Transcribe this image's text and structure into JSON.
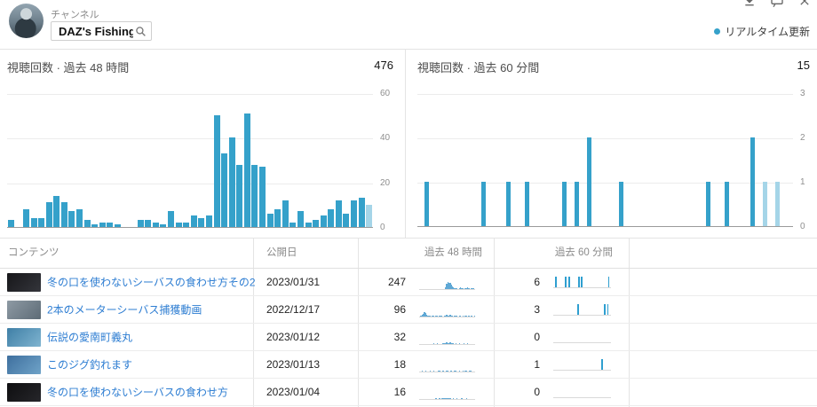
{
  "header": {
    "channel_label": "チャンネル",
    "channel_search": {
      "value": "DAZ's Fishing"
    },
    "realtime_legend": "リアルタイム更新"
  },
  "colors": {
    "bar": "#35a1ca",
    "bar_partial": "#a5d5e8",
    "spark48": "#5fa8d5",
    "spark60": "#2f9fd0",
    "link": "#2d7dd2",
    "realtime_dot": "#35a1ca"
  },
  "chart_data": [
    {
      "type": "bar",
      "title": "視聴回数 · 過去 48 時間",
      "total": "476",
      "x_unit": "hour",
      "x_range": "past 48 hours",
      "ylim": [
        0,
        60
      ],
      "y_ticks": [
        60,
        40,
        20,
        0
      ],
      "grid": true,
      "values": [
        3,
        0,
        8,
        4,
        4,
        11,
        14,
        11,
        7,
        8,
        3,
        1,
        2,
        2,
        1,
        0,
        0,
        3,
        3,
        2,
        1,
        7,
        2,
        2,
        5,
        4,
        5,
        50,
        33,
        40,
        28,
        51,
        28,
        27,
        6,
        8,
        12,
        2,
        7,
        2,
        3,
        5,
        8,
        12,
        6,
        12,
        13,
        10
      ],
      "partial_bar_indices": [
        47
      ]
    },
    {
      "type": "bar",
      "title": "視聴回数 · 過去 60 分間",
      "total": "15",
      "x_unit": "minute",
      "x_range": "past 60 minutes",
      "ylim": [
        0,
        3
      ],
      "y_ticks": [
        3,
        2,
        1,
        0
      ],
      "grid": true,
      "values": [
        0,
        1,
        0,
        0,
        0,
        0,
        0,
        0,
        0,
        0,
        1,
        0,
        0,
        0,
        1,
        0,
        0,
        1,
        0,
        0,
        0,
        0,
        0,
        1,
        0,
        1,
        0,
        2,
        0,
        0,
        0,
        0,
        1,
        0,
        0,
        0,
        0,
        0,
        0,
        0,
        0,
        0,
        0,
        0,
        0,
        0,
        1,
        0,
        0,
        1,
        0,
        0,
        0,
        2,
        0,
        1,
        0,
        1,
        0,
        0
      ],
      "partial_bar_indices": [
        55,
        57
      ]
    }
  ],
  "table": {
    "headers": {
      "content": "コンテンツ",
      "published": "公開日",
      "past48h": "過去 48 時間",
      "past60m": "過去 60 分間"
    },
    "rows": [
      {
        "title": "冬の口を使わないシーバスの食わせ方その2",
        "published": "2023/01/31",
        "views_48h": "247",
        "spark_48h": [
          0,
          0,
          0,
          0,
          0,
          0,
          0,
          0,
          0,
          0,
          0,
          0,
          0,
          0,
          0,
          0,
          0,
          0,
          0,
          0,
          0,
          0,
          2,
          6,
          9,
          7,
          8,
          5,
          3,
          2,
          1,
          1,
          1,
          0,
          1,
          2,
          1,
          1,
          0,
          1,
          1,
          2,
          1,
          0,
          1,
          1,
          1,
          0
        ],
        "views_60m": "6",
        "spark_60m": [
          0,
          0,
          1,
          0,
          0,
          0,
          0,
          0,
          0,
          0,
          0,
          0,
          1,
          0,
          0,
          0,
          1,
          0,
          0,
          0,
          0,
          0,
          0,
          0,
          0,
          0,
          1,
          0,
          0,
          1,
          0,
          0,
          0,
          0,
          0,
          0,
          0,
          0,
          0,
          0,
          0,
          0,
          0,
          0,
          0,
          0,
          0,
          0,
          0,
          0,
          0,
          0,
          0,
          0,
          0,
          0,
          0,
          1,
          0,
          0
        ],
        "thumb_colors": [
          "#17171a",
          "#34353b"
        ]
      },
      {
        "title": "2本のメーターシーバス捕獲動画",
        "published": "2022/12/17",
        "views_48h": "96",
        "spark_48h": [
          0,
          1,
          2,
          3,
          5,
          4,
          2,
          1,
          1,
          1,
          0,
          1,
          1,
          0,
          1,
          1,
          0,
          1,
          1,
          1,
          0,
          1,
          1,
          2,
          1,
          1,
          2,
          1,
          1,
          0,
          1,
          1,
          1,
          0,
          1,
          1,
          0,
          1,
          0,
          1,
          1,
          0,
          1,
          0,
          1,
          1,
          0,
          1
        ],
        "views_60m": "3",
        "spark_60m": [
          0,
          0,
          0,
          0,
          0,
          0,
          0,
          0,
          0,
          0,
          0,
          0,
          0,
          0,
          0,
          0,
          0,
          0,
          0,
          0,
          0,
          0,
          0,
          0,
          0,
          1,
          0,
          0,
          0,
          0,
          0,
          0,
          0,
          0,
          0,
          0,
          0,
          0,
          0,
          0,
          0,
          0,
          0,
          0,
          0,
          0,
          0,
          0,
          0,
          0,
          0,
          0,
          0,
          1,
          0,
          0,
          1,
          0,
          0,
          0
        ],
        "thumb_colors": [
          "#8e9aa4",
          "#5d6b76"
        ]
      },
      {
        "title": "伝説の愛南町義丸",
        "published": "2023/01/12",
        "views_48h": "32",
        "spark_48h": [
          0,
          0,
          0,
          0,
          0,
          0,
          0,
          0,
          0,
          0,
          0,
          0,
          1,
          0,
          0,
          1,
          0,
          0,
          0,
          0,
          1,
          1,
          1,
          2,
          1,
          1,
          2,
          1,
          1,
          1,
          0,
          1,
          0,
          0,
          1,
          0,
          0,
          0,
          1,
          0,
          0,
          1,
          0,
          0,
          0,
          0,
          0,
          0
        ],
        "views_60m": "0",
        "spark_60m": [
          0,
          0,
          0,
          0,
          0,
          0,
          0,
          0,
          0,
          0,
          0,
          0,
          0,
          0,
          0,
          0,
          0,
          0,
          0,
          0,
          0,
          0,
          0,
          0,
          0,
          0,
          0,
          0,
          0,
          0,
          0,
          0,
          0,
          0,
          0,
          0,
          0,
          0,
          0,
          0,
          0,
          0,
          0,
          0,
          0,
          0,
          0,
          0,
          0,
          0,
          0,
          0,
          0,
          0,
          0,
          0,
          0,
          0,
          0,
          0
        ],
        "thumb_colors": [
          "#3f7fa6",
          "#7fb4d0"
        ]
      },
      {
        "title": "このジグ釣れます",
        "published": "2023/01/13",
        "views_48h": "18",
        "spark_48h": [
          0,
          0,
          1,
          0,
          0,
          1,
          0,
          0,
          0,
          1,
          0,
          0,
          1,
          0,
          0,
          0,
          1,
          1,
          0,
          0,
          1,
          0,
          0,
          1,
          1,
          0,
          0,
          1,
          0,
          0,
          1,
          1,
          0,
          0,
          1,
          0,
          0,
          1,
          0,
          1,
          1,
          0,
          0,
          1,
          1,
          0,
          0,
          0
        ],
        "views_60m": "1",
        "spark_60m": [
          0,
          0,
          0,
          0,
          0,
          0,
          0,
          0,
          0,
          0,
          0,
          0,
          0,
          0,
          0,
          0,
          0,
          0,
          0,
          0,
          0,
          0,
          0,
          0,
          0,
          0,
          0,
          0,
          0,
          0,
          0,
          0,
          0,
          0,
          0,
          0,
          0,
          0,
          0,
          0,
          0,
          0,
          0,
          0,
          0,
          0,
          0,
          0,
          0,
          0,
          1,
          0,
          0,
          0,
          0,
          0,
          0,
          0,
          0,
          0
        ],
        "thumb_colors": [
          "#3e6f9e",
          "#6fa3c8"
        ]
      },
      {
        "title": "冬の口を使わないシーバスの食わせ方",
        "published": "2023/01/04",
        "views_48h": "16",
        "spark_48h": [
          0,
          0,
          0,
          0,
          0,
          0,
          0,
          0,
          0,
          0,
          0,
          0,
          0,
          0,
          1,
          0,
          0,
          1,
          0,
          1,
          1,
          2,
          1,
          1,
          1,
          2,
          1,
          0,
          0,
          1,
          0,
          0,
          1,
          0,
          0,
          0,
          1,
          0,
          0,
          0,
          1,
          0,
          0,
          0,
          0,
          0,
          0,
          0
        ],
        "views_60m": "0",
        "spark_60m": [
          0,
          0,
          0,
          0,
          0,
          0,
          0,
          0,
          0,
          0,
          0,
          0,
          0,
          0,
          0,
          0,
          0,
          0,
          0,
          0,
          0,
          0,
          0,
          0,
          0,
          0,
          0,
          0,
          0,
          0,
          0,
          0,
          0,
          0,
          0,
          0,
          0,
          0,
          0,
          0,
          0,
          0,
          0,
          0,
          0,
          0,
          0,
          0,
          0,
          0,
          0,
          0,
          0,
          0,
          0,
          0,
          0,
          0,
          0,
          0
        ],
        "thumb_colors": [
          "#0e0e10",
          "#26262a"
        ]
      }
    ]
  }
}
